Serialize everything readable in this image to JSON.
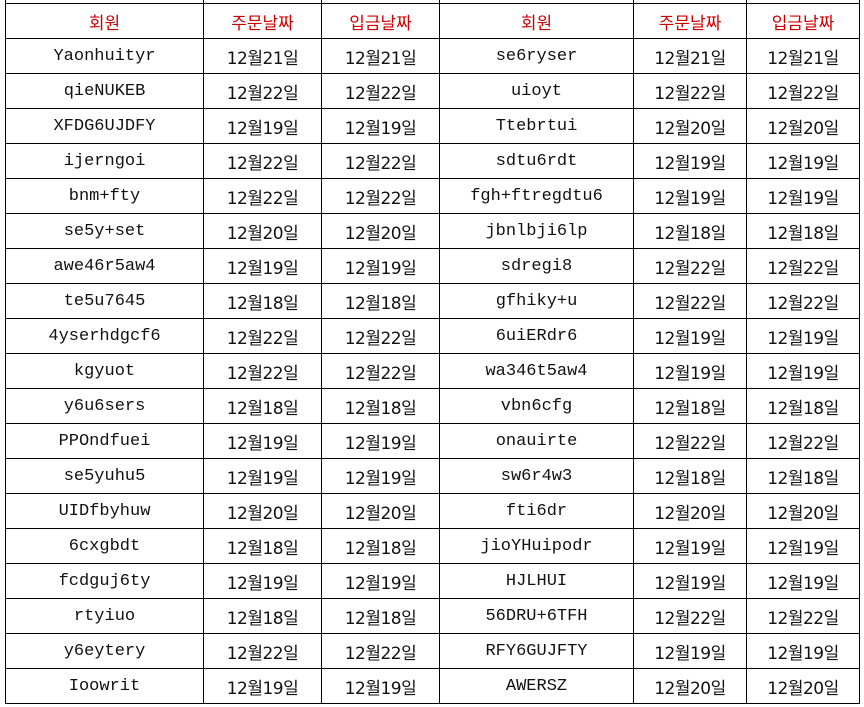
{
  "header": {
    "member": "회원",
    "order_date": "주문날짜",
    "payment_date": "입금날짜"
  },
  "colors": {
    "header_text": "#d00000",
    "grid": "#000000"
  },
  "left_rows": [
    {
      "member": "Yaonhuityr",
      "order": "12월21일",
      "payment": "12월21일"
    },
    {
      "member": "qieNUKEB",
      "order": "12월22일",
      "payment": "12월22일"
    },
    {
      "member": "XFDG6UJDFY",
      "order": "12월19일",
      "payment": "12월19일"
    },
    {
      "member": "ijerngoi",
      "order": "12월22일",
      "payment": "12월22일"
    },
    {
      "member": "bnm+fty",
      "order": "12월22일",
      "payment": "12월22일"
    },
    {
      "member": "se5y+set",
      "order": "12월20일",
      "payment": "12월20일"
    },
    {
      "member": "awe46r5aw4",
      "order": "12월19일",
      "payment": "12월19일"
    },
    {
      "member": "te5u7645",
      "order": "12월18일",
      "payment": "12월18일"
    },
    {
      "member": "4yserhdgcf6",
      "order": "12월22일",
      "payment": "12월22일"
    },
    {
      "member": "kgyuot",
      "order": "12월22일",
      "payment": "12월22일"
    },
    {
      "member": "y6u6sers",
      "order": "12월18일",
      "payment": "12월18일"
    },
    {
      "member": "PPOndfuei",
      "order": "12월19일",
      "payment": "12월19일"
    },
    {
      "member": "se5yuhu5",
      "order": "12월19일",
      "payment": "12월19일"
    },
    {
      "member": "UIDfbyhuw",
      "order": "12월20일",
      "payment": "12월20일"
    },
    {
      "member": "6cxgbdt",
      "order": "12월18일",
      "payment": "12월18일"
    },
    {
      "member": "fcdguj6ty",
      "order": "12월19일",
      "payment": "12월19일"
    },
    {
      "member": "rtyiuo",
      "order": "12월18일",
      "payment": "12월18일"
    },
    {
      "member": "y6eytery",
      "order": "12월22일",
      "payment": "12월22일"
    },
    {
      "member": "Ioowrit",
      "order": "12월19일",
      "payment": "12월19일"
    }
  ],
  "right_rows": [
    {
      "member": "se6ryser",
      "order": "12월21일",
      "payment": "12월21일"
    },
    {
      "member": "uioyt",
      "order": "12월22일",
      "payment": "12월22일"
    },
    {
      "member": "Ttebrtui",
      "order": "12월20일",
      "payment": "12월20일"
    },
    {
      "member": "sdtu6rdt",
      "order": "12월19일",
      "payment": "12월19일"
    },
    {
      "member": "fgh+ftregdtu6",
      "order": "12월19일",
      "payment": "12월19일"
    },
    {
      "member": "jbnlbji6lp",
      "order": "12월18일",
      "payment": "12월18일"
    },
    {
      "member": "sdregi8",
      "order": "12월22일",
      "payment": "12월22일"
    },
    {
      "member": "gfhiky+u",
      "order": "12월22일",
      "payment": "12월22일"
    },
    {
      "member": "6uiERdr6",
      "order": "12월19일",
      "payment": "12월19일"
    },
    {
      "member": "wa346t5aw4",
      "order": "12월19일",
      "payment": "12월19일"
    },
    {
      "member": "vbn6cfg",
      "order": "12월18일",
      "payment": "12월18일"
    },
    {
      "member": "onauirte",
      "order": "12월22일",
      "payment": "12월22일"
    },
    {
      "member": "sw6r4w3",
      "order": "12월18일",
      "payment": "12월18일"
    },
    {
      "member": "fti6dr",
      "order": "12월20일",
      "payment": "12월20일"
    },
    {
      "member": "jioYHuipodr",
      "order": "12월19일",
      "payment": "12월19일"
    },
    {
      "member": "HJLHUI",
      "order": "12월19일",
      "payment": "12월19일"
    },
    {
      "member": "56DRU+6TFH",
      "order": "12월22일",
      "payment": "12월22일"
    },
    {
      "member": "RFY6GUJFTY",
      "order": "12월19일",
      "payment": "12월19일"
    },
    {
      "member": "AWERSZ",
      "order": "12월20일",
      "payment": "12월20일"
    }
  ]
}
